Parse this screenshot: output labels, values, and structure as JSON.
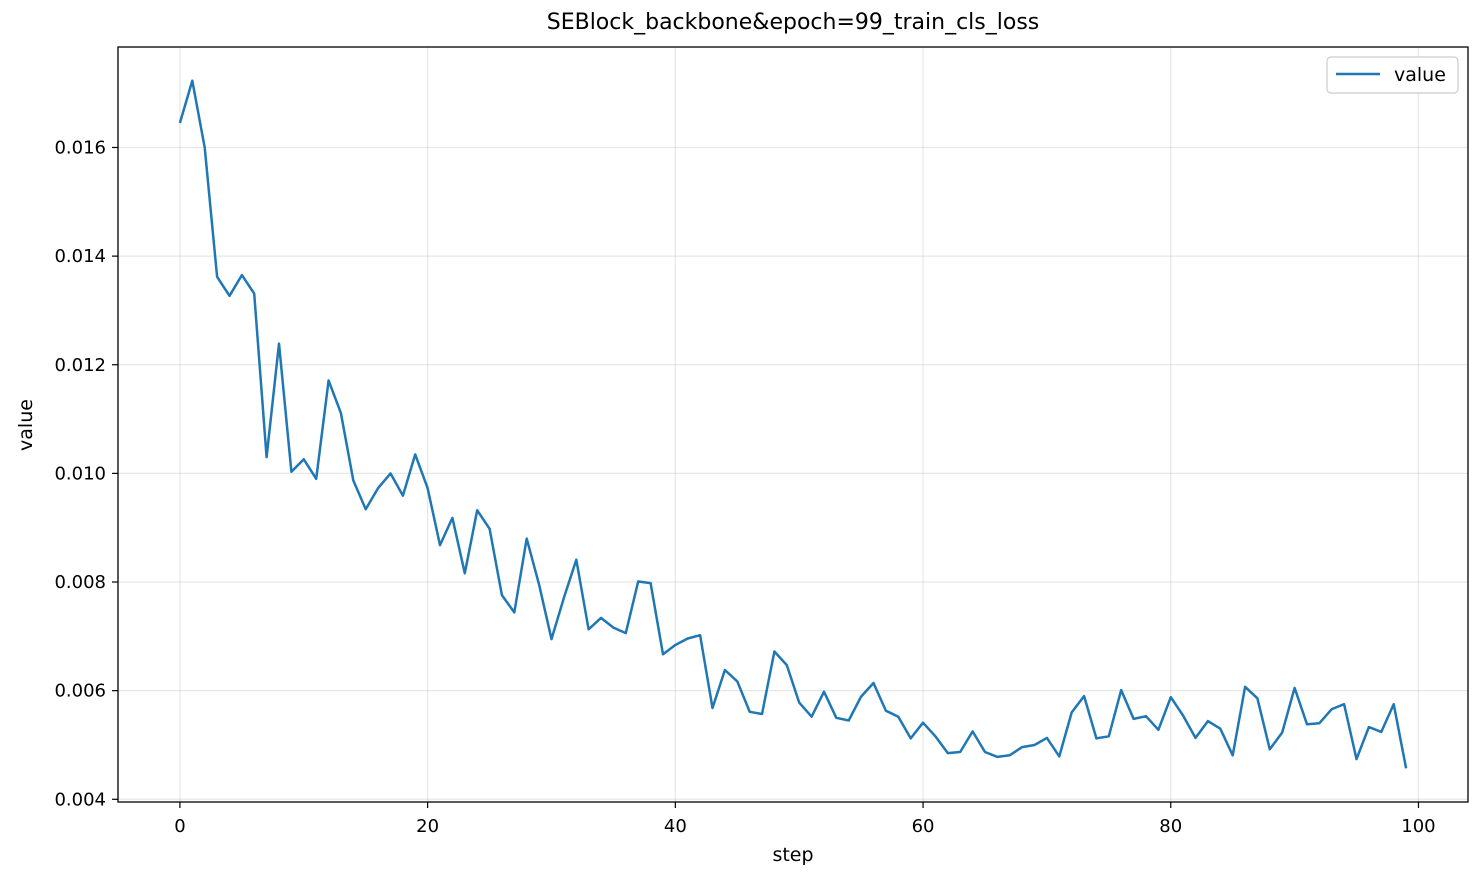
{
  "chart_data": {
    "type": "line",
    "title": "SEBlock_backbone&epoch=99_train_cls_loss",
    "xlabel": "step",
    "ylabel": "value",
    "xlim": [
      -5,
      104
    ],
    "ylim": [
      0.00395,
      0.01785
    ],
    "xticks": [
      0,
      20,
      40,
      60,
      80,
      100
    ],
    "xtick_labels": [
      "0",
      "20",
      "40",
      "60",
      "80",
      "100"
    ],
    "yticks": [
      0.004,
      0.006,
      0.008,
      0.01,
      0.012,
      0.014,
      0.016
    ],
    "ytick_labels": [
      "0.004",
      "0.006",
      "0.008",
      "0.010",
      "0.012",
      "0.014",
      "0.016"
    ],
    "grid": true,
    "legend_position": "top-right",
    "series": [
      {
        "name": "value",
        "color": "#1f77b4",
        "x": [
          0,
          1,
          2,
          3,
          4,
          5,
          6,
          7,
          8,
          9,
          10,
          11,
          12,
          13,
          14,
          15,
          16,
          17,
          18,
          19,
          20,
          21,
          22,
          23,
          24,
          25,
          26,
          27,
          28,
          29,
          30,
          31,
          32,
          33,
          34,
          35,
          36,
          37,
          38,
          39,
          40,
          41,
          42,
          43,
          44,
          45,
          46,
          47,
          48,
          49,
          50,
          51,
          52,
          53,
          54,
          55,
          56,
          57,
          58,
          59,
          60,
          61,
          62,
          63,
          64,
          65,
          66,
          67,
          68,
          69,
          70,
          71,
          72,
          73,
          74,
          75,
          76,
          77,
          78,
          79,
          80,
          81,
          82,
          83,
          84,
          85,
          86,
          87,
          88,
          89,
          90,
          91,
          92,
          93,
          94,
          95,
          96,
          97,
          98,
          99
        ],
        "y": [
          0.01645,
          0.01723,
          0.016,
          0.01362,
          0.01327,
          0.01365,
          0.01331,
          0.0103,
          0.01239,
          0.01003,
          0.01026,
          0.0099,
          0.01171,
          0.01111,
          0.00987,
          0.00934,
          0.00973,
          0.01,
          0.00959,
          0.01035,
          0.00973,
          0.00868,
          0.00918,
          0.00816,
          0.00932,
          0.00898,
          0.00776,
          0.00744,
          0.0088,
          0.00795,
          0.00695,
          0.00771,
          0.00841,
          0.00713,
          0.00734,
          0.00716,
          0.00706,
          0.00801,
          0.00798,
          0.00667,
          0.00684,
          0.00696,
          0.00702,
          0.00568,
          0.00638,
          0.00617,
          0.00561,
          0.00557,
          0.00672,
          0.00647,
          0.00578,
          0.00552,
          0.00598,
          0.0055,
          0.00545,
          0.00589,
          0.00614,
          0.00563,
          0.00552,
          0.00512,
          0.00541,
          0.00516,
          0.00485,
          0.00487,
          0.00525,
          0.00487,
          0.00478,
          0.00481,
          0.00496,
          0.005,
          0.00513,
          0.00479,
          0.0056,
          0.0059,
          0.00512,
          0.00516,
          0.00601,
          0.00548,
          0.00553,
          0.00528,
          0.00588,
          0.00554,
          0.00513,
          0.00544,
          0.0053,
          0.00481,
          0.00607,
          0.00586,
          0.00492,
          0.00523,
          0.00605,
          0.00538,
          0.0054,
          0.00566,
          0.00575,
          0.00474,
          0.00533,
          0.00524,
          0.00575,
          0.00457
        ]
      }
    ]
  }
}
